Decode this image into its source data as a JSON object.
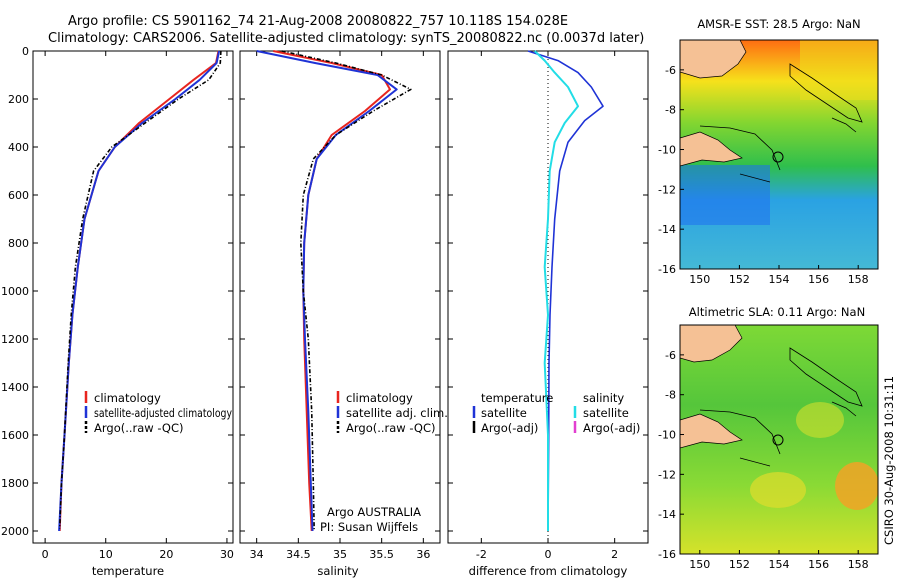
{
  "header": {
    "title_line1": "Argo profile: CS 5901162_74 21-Aug-2008 20080822_757 10.118S 154.028E",
    "title_line2": "Climatology: CARS2006. Satellite-adjusted climatology: synTS_20080822.nc (0.0037d later)"
  },
  "colors": {
    "climatology": "#e8251f",
    "satellite": "#1f33d6",
    "argo": "#000000",
    "salinity_sat": "#22dde6",
    "salinity_argo": "#e23fd0"
  },
  "footer": {
    "stamp": "CSIRO 30-Aug-2008 10:31:11",
    "argo_credit": "Argo AUSTRALIA",
    "pi_credit": "PI: Susan Wijffels"
  },
  "chart_data": [
    {
      "type": "line",
      "id": "temperature",
      "xlabel": "temperature",
      "ylabel": "",
      "xlim": [
        -2,
        31
      ],
      "ylim": [
        2050,
        0
      ],
      "xticks": [
        0,
        10,
        20,
        30
      ],
      "xtick_labels": [
        "0",
        "10",
        "20",
        "30"
      ],
      "yticks": [
        0,
        200,
        400,
        600,
        800,
        1000,
        1200,
        1400,
        1600,
        1800,
        2000
      ],
      "ytick_labels": [
        "0",
        "200",
        "400",
        "600",
        "800",
        "1000",
        "1200",
        "1400",
        "1600",
        "1800",
        "2000"
      ],
      "legend": [
        "climatology",
        "satellite-adjusted climatology",
        "Argo(..raw -QC)"
      ],
      "series": [
        {
          "name": "climatology",
          "x": [
            28.6,
            28.2,
            24.5,
            20.5,
            15.5,
            11.5,
            8.8,
            6.5,
            5.4,
            4.5,
            3.9,
            3.2,
            2.7,
            2.4
          ],
          "y": [
            0,
            50,
            120,
            200,
            300,
            400,
            500,
            700,
            900,
            1100,
            1300,
            1600,
            1800,
            2000
          ]
        },
        {
          "name": "satellite-adjusted climatology",
          "x": [
            28.7,
            28.3,
            25.5,
            21.5,
            16.0,
            11.5,
            8.8,
            6.5,
            5.4,
            4.5,
            3.9,
            3.2,
            2.7,
            2.3
          ],
          "y": [
            0,
            50,
            120,
            200,
            300,
            400,
            500,
            700,
            900,
            1100,
            1300,
            1600,
            1800,
            2000
          ]
        },
        {
          "name": "Argo(..raw -QC)",
          "x": [
            29.0,
            28.9,
            27.0,
            22.0,
            16.5,
            11.0,
            8.0,
            6.2,
            5.0,
            4.3,
            3.8,
            3.2,
            2.7,
            2.4
          ],
          "y": [
            0,
            50,
            120,
            200,
            300,
            400,
            500,
            700,
            900,
            1100,
            1300,
            1600,
            1800,
            1990
          ]
        }
      ]
    },
    {
      "type": "line",
      "id": "salinity",
      "xlabel": "salinity",
      "ylabel": "",
      "xlim": [
        33.8,
        36.2
      ],
      "ylim": [
        2050,
        0
      ],
      "xticks": [
        34,
        34.5,
        35,
        35.5,
        36
      ],
      "xtick_labels": [
        "34",
        "34.5",
        "35",
        "35.5",
        "36"
      ],
      "legend": [
        "climatology",
        "satellite adj. clim.",
        "Argo(..raw -QC)"
      ],
      "series": [
        {
          "name": "climatology",
          "x": [
            34.2,
            34.9,
            35.5,
            35.6,
            35.3,
            34.9,
            34.72,
            34.62,
            34.57,
            34.56,
            34.57,
            34.6,
            34.63,
            34.66
          ],
          "y": [
            0,
            50,
            100,
            160,
            250,
            350,
            450,
            600,
            800,
            1000,
            1200,
            1500,
            1800,
            2000
          ]
        },
        {
          "name": "satellite adj. clim.",
          "x": [
            34.0,
            34.7,
            35.45,
            35.68,
            35.35,
            34.95,
            34.72,
            34.62,
            34.57,
            34.56,
            34.58,
            34.62,
            34.65,
            34.67
          ],
          "y": [
            0,
            50,
            100,
            160,
            250,
            350,
            450,
            600,
            800,
            1000,
            1200,
            1500,
            1800,
            2000
          ]
        },
        {
          "name": "Argo(..raw -QC)",
          "x": [
            34.3,
            34.95,
            35.5,
            35.85,
            35.4,
            34.95,
            34.68,
            34.56,
            34.53,
            34.56,
            34.62,
            34.66,
            34.68,
            34.69
          ],
          "y": [
            0,
            50,
            100,
            160,
            250,
            350,
            450,
            600,
            800,
            1000,
            1200,
            1500,
            1800,
            2000
          ]
        }
      ]
    },
    {
      "type": "line",
      "id": "difference",
      "xlabel": "difference from climatology",
      "ylabel": "",
      "xlim": [
        -3,
        3
      ],
      "ylim": [
        2050,
        0
      ],
      "xticks": [
        -2,
        0,
        2
      ],
      "xtick_labels": [
        "-2",
        "0",
        "2"
      ],
      "legend_left_title": "temperature",
      "legend_right_title": "salinity",
      "legend_left": [
        "satellite",
        "Argo(-adj)"
      ],
      "legend_right": [
        "satellite",
        "Argo(-adj)"
      ],
      "series": [
        {
          "name": "temperature satellite",
          "x": [
            -0.6,
            0.3,
            0.9,
            1.3,
            1.65,
            1.1,
            0.6,
            0.35,
            0.2,
            0.12,
            0.06,
            0.03,
            0.02,
            0.0
          ],
          "y": [
            0,
            40,
            90,
            150,
            230,
            290,
            380,
            500,
            700,
            900,
            1100,
            1300,
            1600,
            2000
          ]
        },
        {
          "name": "salinity satellite",
          "x": [
            -0.4,
            -0.1,
            0.2,
            0.6,
            0.9,
            0.5,
            0.2,
            0.05,
            0.0,
            -0.1,
            0.0,
            -0.1,
            0.0,
            0.0
          ],
          "y": [
            0,
            40,
            90,
            150,
            230,
            300,
            380,
            500,
            700,
            900,
            1100,
            1300,
            1600,
            2000
          ]
        }
      ]
    },
    {
      "type": "heatmap",
      "id": "sst_map",
      "title": "AMSR-E SST: 28.5 Argo: NaN",
      "xlim": [
        149,
        159
      ],
      "ylim": [
        -16,
        -4.5
      ],
      "xticks": [
        150,
        152,
        154,
        156,
        158
      ],
      "xtick_labels": [
        "150",
        "152",
        "154",
        "156",
        "158"
      ],
      "yticks": [
        -6,
        -8,
        -10,
        -12,
        -14,
        -16
      ],
      "ytick_labels": [
        "-6",
        "-8",
        "-10",
        "-12",
        "-14",
        "-16"
      ],
      "marker": {
        "lon": 154.03,
        "lat": -10.12
      }
    },
    {
      "type": "heatmap",
      "id": "sla_map",
      "title": "Altimetric SLA: 0.11 Argo: NaN",
      "xlim": [
        149,
        159
      ],
      "ylim": [
        -16,
        -4.5
      ],
      "xticks": [
        150,
        152,
        154,
        156,
        158
      ],
      "xtick_labels": [
        "150",
        "152",
        "154",
        "156",
        "158"
      ],
      "yticks": [
        -6,
        -8,
        -10,
        -12,
        -14,
        -16
      ],
      "ytick_labels": [
        "-6",
        "-8",
        "-10",
        "-12",
        "-14",
        "-16"
      ],
      "marker": {
        "lon": 154.03,
        "lat": -10.12
      }
    }
  ]
}
